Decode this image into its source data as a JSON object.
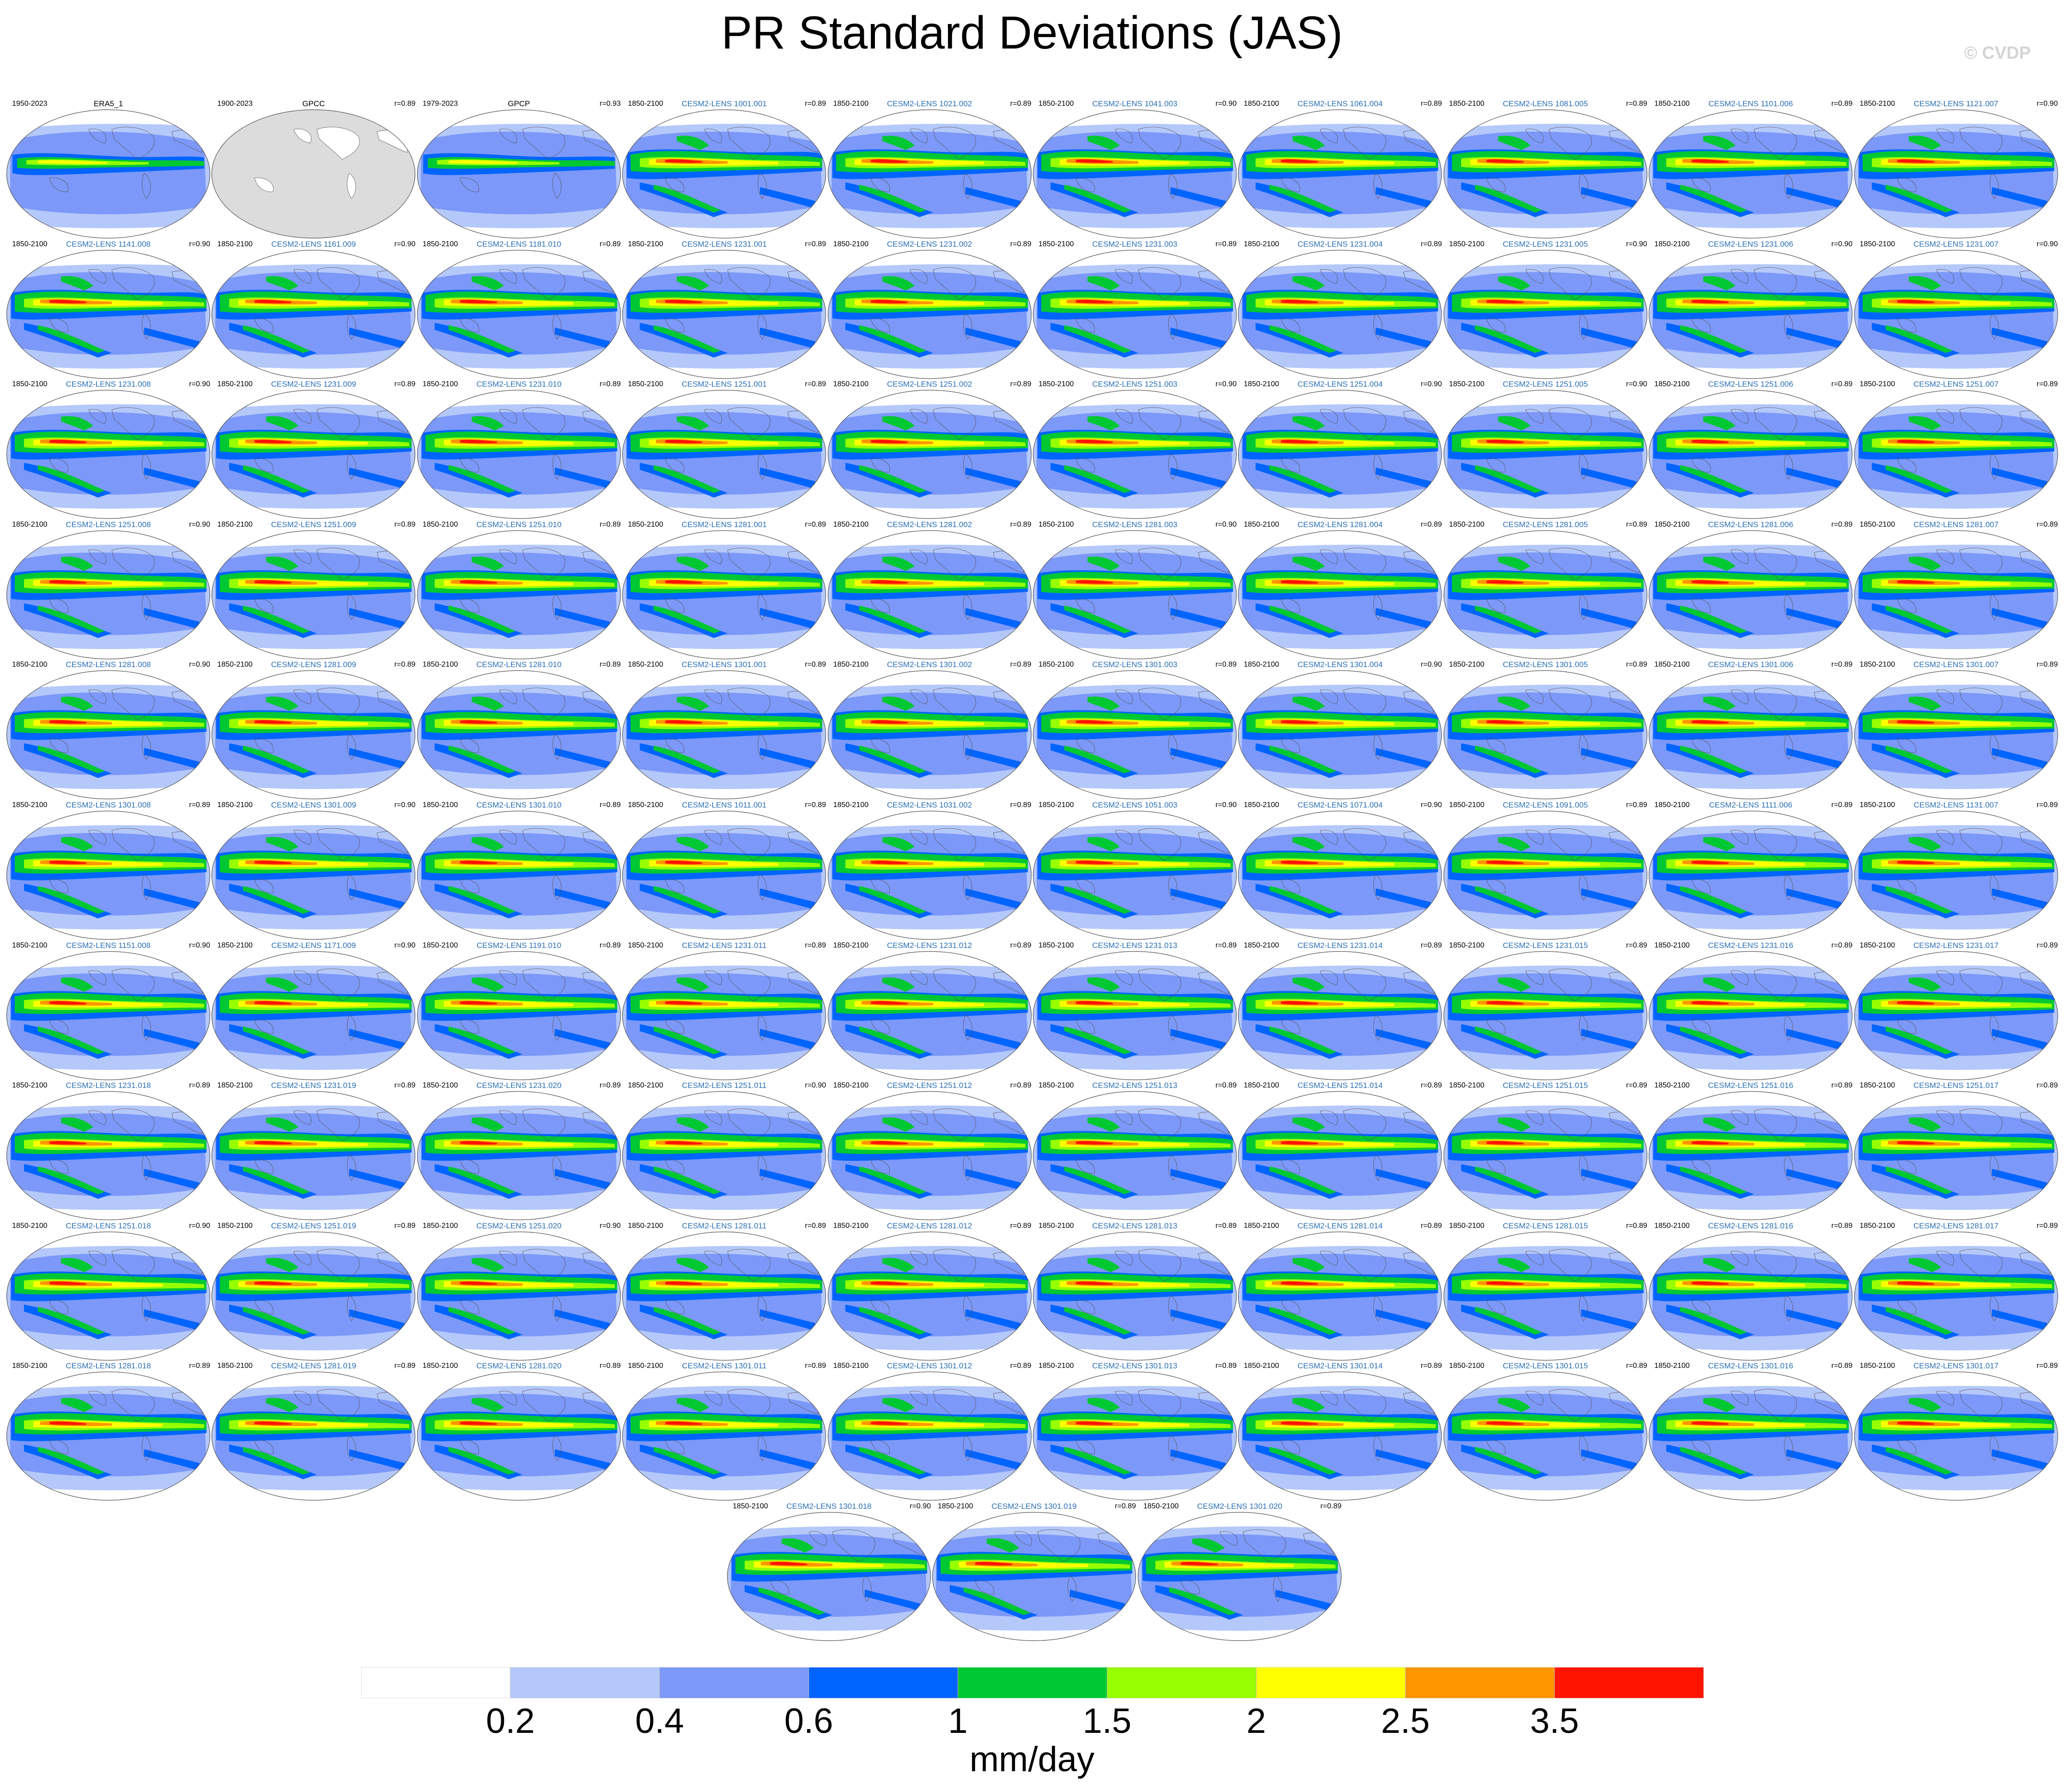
{
  "title": "PR Standard Deviations (JAS)",
  "watermark": "© CVDP",
  "chart_data": {
    "type": "heatmap",
    "title": "PR Standard Deviations (JAS)",
    "colorbar": {
      "levels": [
        0.2,
        0.4,
        0.6,
        1,
        1.5,
        2,
        2.5,
        3.5
      ],
      "tick_labels": [
        "0.2",
        "0.4",
        "0.6",
        "1",
        "1.5",
        "2",
        "2.5",
        "3.5"
      ],
      "colors": [
        "#ffffff",
        "#b4c8fa",
        "#7c98f8",
        "#0064ff",
        "#00c832",
        "#96ff00",
        "#ffff00",
        "#ff9600",
        "#ff1400"
      ],
      "units": "mm/day"
    },
    "panels": [
      {
        "name": "ERA5_1",
        "years": "1950-2023",
        "r": "",
        "kind": "obs"
      },
      {
        "name": "GPCC",
        "years": "1900-2023",
        "r": "r=0.89",
        "kind": "gpcc"
      },
      {
        "name": "GPCP",
        "years": "1979-2023",
        "r": "r=0.93",
        "kind": "obs"
      },
      {
        "name": "CESM2-LENS 1001.001",
        "years": "1850-2100",
        "r": "r=0.89",
        "kind": "model"
      },
      {
        "name": "CESM2-LENS 1021.002",
        "years": "1850-2100",
        "r": "r=0.89",
        "kind": "model"
      },
      {
        "name": "CESM2-LENS 1041.003",
        "years": "1850-2100",
        "r": "r=0.90",
        "kind": "model"
      },
      {
        "name": "CESM2-LENS 1061.004",
        "years": "1850-2100",
        "r": "r=0.89",
        "kind": "model"
      },
      {
        "name": "CESM2-LENS 1081.005",
        "years": "1850-2100",
        "r": "r=0.89",
        "kind": "model"
      },
      {
        "name": "CESM2-LENS 1101.006",
        "years": "1850-2100",
        "r": "r=0.89",
        "kind": "model"
      },
      {
        "name": "CESM2-LENS 1121.007",
        "years": "1850-2100",
        "r": "r=0.90",
        "kind": "model"
      },
      {
        "name": "CESM2-LENS 1141.008",
        "years": "1850-2100",
        "r": "r=0.90",
        "kind": "model"
      },
      {
        "name": "CESM2-LENS 1161.009",
        "years": "1850-2100",
        "r": "r=0.90",
        "kind": "model"
      },
      {
        "name": "CESM2-LENS 1181.010",
        "years": "1850-2100",
        "r": "r=0.89",
        "kind": "model"
      },
      {
        "name": "CESM2-LENS 1231.001",
        "years": "1850-2100",
        "r": "r=0.89",
        "kind": "model"
      },
      {
        "name": "CESM2-LENS 1231.002",
        "years": "1850-2100",
        "r": "r=0.89",
        "kind": "model"
      },
      {
        "name": "CESM2-LENS 1231.003",
        "years": "1850-2100",
        "r": "r=0.89",
        "kind": "model"
      },
      {
        "name": "CESM2-LENS 1231.004",
        "years": "1850-2100",
        "r": "r=0.89",
        "kind": "model"
      },
      {
        "name": "CESM2-LENS 1231.005",
        "years": "1850-2100",
        "r": "r=0.90",
        "kind": "model"
      },
      {
        "name": "CESM2-LENS 1231.006",
        "years": "1850-2100",
        "r": "r=0.90",
        "kind": "model"
      },
      {
        "name": "CESM2-LENS 1231.007",
        "years": "1850-2100",
        "r": "r=0.90",
        "kind": "model"
      },
      {
        "name": "CESM2-LENS 1231.008",
        "years": "1850-2100",
        "r": "r=0.90",
        "kind": "model"
      },
      {
        "name": "CESM2-LENS 1231.009",
        "years": "1850-2100",
        "r": "r=0.89",
        "kind": "model"
      },
      {
        "name": "CESM2-LENS 1231.010",
        "years": "1850-2100",
        "r": "r=0.89",
        "kind": "model"
      },
      {
        "name": "CESM2-LENS 1251.001",
        "years": "1850-2100",
        "r": "r=0.89",
        "kind": "model"
      },
      {
        "name": "CESM2-LENS 1251.002",
        "years": "1850-2100",
        "r": "r=0.89",
        "kind": "model"
      },
      {
        "name": "CESM2-LENS 1251.003",
        "years": "1850-2100",
        "r": "r=0.90",
        "kind": "model"
      },
      {
        "name": "CESM2-LENS 1251.004",
        "years": "1850-2100",
        "r": "r=0.90",
        "kind": "model"
      },
      {
        "name": "CESM2-LENS 1251.005",
        "years": "1850-2100",
        "r": "r=0.90",
        "kind": "model"
      },
      {
        "name": "CESM2-LENS 1251.006",
        "years": "1850-2100",
        "r": "r=0.89",
        "kind": "model"
      },
      {
        "name": "CESM2-LENS 1251.007",
        "years": "1850-2100",
        "r": "r=0.89",
        "kind": "model"
      },
      {
        "name": "CESM2-LENS 1251.008",
        "years": "1850-2100",
        "r": "r=0.90",
        "kind": "model"
      },
      {
        "name": "CESM2-LENS 1251.009",
        "years": "1850-2100",
        "r": "r=0.89",
        "kind": "model"
      },
      {
        "name": "CESM2-LENS 1251.010",
        "years": "1850-2100",
        "r": "r=0.89",
        "kind": "model"
      },
      {
        "name": "CESM2-LENS 1281.001",
        "years": "1850-2100",
        "r": "r=0.89",
        "kind": "model"
      },
      {
        "name": "CESM2-LENS 1281.002",
        "years": "1850-2100",
        "r": "r=0.89",
        "kind": "model"
      },
      {
        "name": "CESM2-LENS 1281.003",
        "years": "1850-2100",
        "r": "r=0.90",
        "kind": "model"
      },
      {
        "name": "CESM2-LENS 1281.004",
        "years": "1850-2100",
        "r": "r=0.89",
        "kind": "model"
      },
      {
        "name": "CESM2-LENS 1281.005",
        "years": "1850-2100",
        "r": "r=0.89",
        "kind": "model"
      },
      {
        "name": "CESM2-LENS 1281.006",
        "years": "1850-2100",
        "r": "r=0.89",
        "kind": "model"
      },
      {
        "name": "CESM2-LENS 1281.007",
        "years": "1850-2100",
        "r": "r=0.89",
        "kind": "model"
      },
      {
        "name": "CESM2-LENS 1281.008",
        "years": "1850-2100",
        "r": "r=0.90",
        "kind": "model"
      },
      {
        "name": "CESM2-LENS 1281.009",
        "years": "1850-2100",
        "r": "r=0.89",
        "kind": "model"
      },
      {
        "name": "CESM2-LENS 1281.010",
        "years": "1850-2100",
        "r": "r=0.89",
        "kind": "model"
      },
      {
        "name": "CESM2-LENS 1301.001",
        "years": "1850-2100",
        "r": "r=0.89",
        "kind": "model"
      },
      {
        "name": "CESM2-LENS 1301.002",
        "years": "1850-2100",
        "r": "r=0.89",
        "kind": "model"
      },
      {
        "name": "CESM2-LENS 1301.003",
        "years": "1850-2100",
        "r": "r=0.89",
        "kind": "model"
      },
      {
        "name": "CESM2-LENS 1301.004",
        "years": "1850-2100",
        "r": "r=0.90",
        "kind": "model"
      },
      {
        "name": "CESM2-LENS 1301.005",
        "years": "1850-2100",
        "r": "r=0.89",
        "kind": "model"
      },
      {
        "name": "CESM2-LENS 1301.006",
        "years": "1850-2100",
        "r": "r=0.89",
        "kind": "model"
      },
      {
        "name": "CESM2-LENS 1301.007",
        "years": "1850-2100",
        "r": "r=0.89",
        "kind": "model"
      },
      {
        "name": "CESM2-LENS 1301.008",
        "years": "1850-2100",
        "r": "r=0.89",
        "kind": "model"
      },
      {
        "name": "CESM2-LENS 1301.009",
        "years": "1850-2100",
        "r": "r=0.90",
        "kind": "model"
      },
      {
        "name": "CESM2-LENS 1301.010",
        "years": "1850-2100",
        "r": "r=0.89",
        "kind": "model"
      },
      {
        "name": "CESM2-LENS 1011.001",
        "years": "1850-2100",
        "r": "r=0.89",
        "kind": "model"
      },
      {
        "name": "CESM2-LENS 1031.002",
        "years": "1850-2100",
        "r": "r=0.89",
        "kind": "model"
      },
      {
        "name": "CESM2-LENS 1051.003",
        "years": "1850-2100",
        "r": "r=0.90",
        "kind": "model"
      },
      {
        "name": "CESM2-LENS 1071.004",
        "years": "1850-2100",
        "r": "r=0.90",
        "kind": "model"
      },
      {
        "name": "CESM2-LENS 1091.005",
        "years": "1850-2100",
        "r": "r=0.89",
        "kind": "model"
      },
      {
        "name": "CESM2-LENS 1111.006",
        "years": "1850-2100",
        "r": "r=0.89",
        "kind": "model"
      },
      {
        "name": "CESM2-LENS 1131.007",
        "years": "1850-2100",
        "r": "r=0.89",
        "kind": "model"
      },
      {
        "name": "CESM2-LENS 1151.008",
        "years": "1850-2100",
        "r": "r=0.90",
        "kind": "model"
      },
      {
        "name": "CESM2-LENS 1171.009",
        "years": "1850-2100",
        "r": "r=0.90",
        "kind": "model"
      },
      {
        "name": "CESM2-LENS 1191.010",
        "years": "1850-2100",
        "r": "r=0.89",
        "kind": "model"
      },
      {
        "name": "CESM2-LENS 1231.011",
        "years": "1850-2100",
        "r": "r=0.89",
        "kind": "model"
      },
      {
        "name": "CESM2-LENS 1231.012",
        "years": "1850-2100",
        "r": "r=0.89",
        "kind": "model"
      },
      {
        "name": "CESM2-LENS 1231.013",
        "years": "1850-2100",
        "r": "r=0.89",
        "kind": "model"
      },
      {
        "name": "CESM2-LENS 1231.014",
        "years": "1850-2100",
        "r": "r=0.89",
        "kind": "model"
      },
      {
        "name": "CESM2-LENS 1231.015",
        "years": "1850-2100",
        "r": "r=0.89",
        "kind": "model"
      },
      {
        "name": "CESM2-LENS 1231.016",
        "years": "1850-2100",
        "r": "r=0.89",
        "kind": "model"
      },
      {
        "name": "CESM2-LENS 1231.017",
        "years": "1850-2100",
        "r": "r=0.89",
        "kind": "model"
      },
      {
        "name": "CESM2-LENS 1231.018",
        "years": "1850-2100",
        "r": "r=0.89",
        "kind": "model"
      },
      {
        "name": "CESM2-LENS 1231.019",
        "years": "1850-2100",
        "r": "r=0.89",
        "kind": "model"
      },
      {
        "name": "CESM2-LENS 1231.020",
        "years": "1850-2100",
        "r": "r=0.89",
        "kind": "model"
      },
      {
        "name": "CESM2-LENS 1251.011",
        "years": "1850-2100",
        "r": "r=0.90",
        "kind": "model"
      },
      {
        "name": "CESM2-LENS 1251.012",
        "years": "1850-2100",
        "r": "r=0.89",
        "kind": "model"
      },
      {
        "name": "CESM2-LENS 1251.013",
        "years": "1850-2100",
        "r": "r=0.89",
        "kind": "model"
      },
      {
        "name": "CESM2-LENS 1251.014",
        "years": "1850-2100",
        "r": "r=0.89",
        "kind": "model"
      },
      {
        "name": "CESM2-LENS 1251.015",
        "years": "1850-2100",
        "r": "r=0.89",
        "kind": "model"
      },
      {
        "name": "CESM2-LENS 1251.016",
        "years": "1850-2100",
        "r": "r=0.89",
        "kind": "model"
      },
      {
        "name": "CESM2-LENS 1251.017",
        "years": "1850-2100",
        "r": "r=0.89",
        "kind": "model"
      },
      {
        "name": "CESM2-LENS 1251.018",
        "years": "1850-2100",
        "r": "r=0.90",
        "kind": "model"
      },
      {
        "name": "CESM2-LENS 1251.019",
        "years": "1850-2100",
        "r": "r=0.89",
        "kind": "model"
      },
      {
        "name": "CESM2-LENS 1251.020",
        "years": "1850-2100",
        "r": "r=0.90",
        "kind": "model"
      },
      {
        "name": "CESM2-LENS 1281.011",
        "years": "1850-2100",
        "r": "r=0.89",
        "kind": "model"
      },
      {
        "name": "CESM2-LENS 1281.012",
        "years": "1850-2100",
        "r": "r=0.89",
        "kind": "model"
      },
      {
        "name": "CESM2-LENS 1281.013",
        "years": "1850-2100",
        "r": "r=0.89",
        "kind": "model"
      },
      {
        "name": "CESM2-LENS 1281.014",
        "years": "1850-2100",
        "r": "r=0.89",
        "kind": "model"
      },
      {
        "name": "CESM2-LENS 1281.015",
        "years": "1850-2100",
        "r": "r=0.89",
        "kind": "model"
      },
      {
        "name": "CESM2-LENS 1281.016",
        "years": "1850-2100",
        "r": "r=0.89",
        "kind": "model"
      },
      {
        "name": "CESM2-LENS 1281.017",
        "years": "1850-2100",
        "r": "r=0.89",
        "kind": "model"
      },
      {
        "name": "CESM2-LENS 1281.018",
        "years": "1850-2100",
        "r": "r=0.89",
        "kind": "model"
      },
      {
        "name": "CESM2-LENS 1281.019",
        "years": "1850-2100",
        "r": "r=0.89",
        "kind": "model"
      },
      {
        "name": "CESM2-LENS 1281.020",
        "years": "1850-2100",
        "r": "r=0.89",
        "kind": "model"
      },
      {
        "name": "CESM2-LENS 1301.011",
        "years": "1850-2100",
        "r": "r=0.89",
        "kind": "model"
      },
      {
        "name": "CESM2-LENS 1301.012",
        "years": "1850-2100",
        "r": "r=0.89",
        "kind": "model"
      },
      {
        "name": "CESM2-LENS 1301.013",
        "years": "1850-2100",
        "r": "r=0.89",
        "kind": "model"
      },
      {
        "name": "CESM2-LENS 1301.014",
        "years": "1850-2100",
        "r": "r=0.89",
        "kind": "model"
      },
      {
        "name": "CESM2-LENS 1301.015",
        "years": "1850-2100",
        "r": "r=0.89",
        "kind": "model"
      },
      {
        "name": "CESM2-LENS 1301.016",
        "years": "1850-2100",
        "r": "r=0.89",
        "kind": "model"
      },
      {
        "name": "CESM2-LENS 1301.017",
        "years": "1850-2100",
        "r": "r=0.89",
        "kind": "model"
      },
      {
        "name": "CESM2-LENS 1301.018",
        "years": "1850-2100",
        "r": "r=0.90",
        "kind": "model"
      },
      {
        "name": "CESM2-LENS 1301.019",
        "years": "1850-2100",
        "r": "r=0.89",
        "kind": "model"
      },
      {
        "name": "CESM2-LENS 1301.020",
        "years": "1850-2100",
        "r": "r=0.89",
        "kind": "model"
      }
    ]
  }
}
